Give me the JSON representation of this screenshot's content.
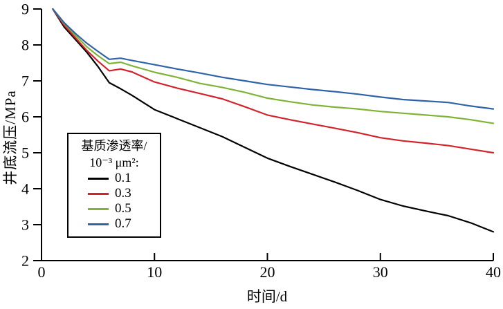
{
  "chart_data": {
    "type": "line",
    "title": "",
    "xlabel": "时间/d",
    "ylabel": "井底流压/MPa",
    "xlim": [
      0,
      40
    ],
    "ylim": [
      2,
      9
    ],
    "xticks": [
      0,
      10,
      20,
      30,
      40
    ],
    "yticks": [
      2,
      3,
      4,
      5,
      6,
      7,
      8,
      9
    ],
    "grid": false,
    "legend": {
      "title_line1": "基质渗透率/",
      "title_line2": "10⁻³ μm²:",
      "position": "lower-left"
    },
    "x": [
      1,
      2,
      3,
      4,
      5,
      6,
      7,
      8,
      10,
      12,
      14,
      16,
      18,
      20,
      22,
      24,
      26,
      28,
      30,
      32,
      34,
      36,
      38,
      40
    ],
    "series": [
      {
        "name": "0.1",
        "color": "#000000",
        "values": [
          9.0,
          8.5,
          8.15,
          7.8,
          7.4,
          6.95,
          6.78,
          6.6,
          6.2,
          5.95,
          5.7,
          5.45,
          5.15,
          4.85,
          4.62,
          4.4,
          4.18,
          3.95,
          3.7,
          3.52,
          3.38,
          3.25,
          3.05,
          2.8
        ]
      },
      {
        "name": "0.3",
        "color": "#d2232a",
        "values": [
          9.0,
          8.55,
          8.2,
          7.85,
          7.55,
          7.28,
          7.33,
          7.25,
          6.97,
          6.8,
          6.65,
          6.5,
          6.28,
          6.05,
          5.92,
          5.8,
          5.68,
          5.56,
          5.42,
          5.33,
          5.27,
          5.2,
          5.1,
          5.0
        ]
      },
      {
        "name": "0.5",
        "color": "#7fb335",
        "values": [
          9.0,
          8.6,
          8.27,
          7.95,
          7.7,
          7.48,
          7.52,
          7.42,
          7.24,
          7.1,
          6.93,
          6.82,
          6.68,
          6.52,
          6.42,
          6.33,
          6.27,
          6.22,
          6.15,
          6.1,
          6.05,
          6.0,
          5.92,
          5.82
        ]
      },
      {
        "name": "0.7",
        "color": "#2f63a8",
        "values": [
          9.0,
          8.62,
          8.32,
          8.05,
          7.82,
          7.6,
          7.63,
          7.57,
          7.45,
          7.33,
          7.22,
          7.1,
          7.0,
          6.9,
          6.83,
          6.76,
          6.7,
          6.63,
          6.55,
          6.48,
          6.44,
          6.4,
          6.3,
          6.22
        ]
      }
    ],
    "axis_color": "#000000"
  }
}
